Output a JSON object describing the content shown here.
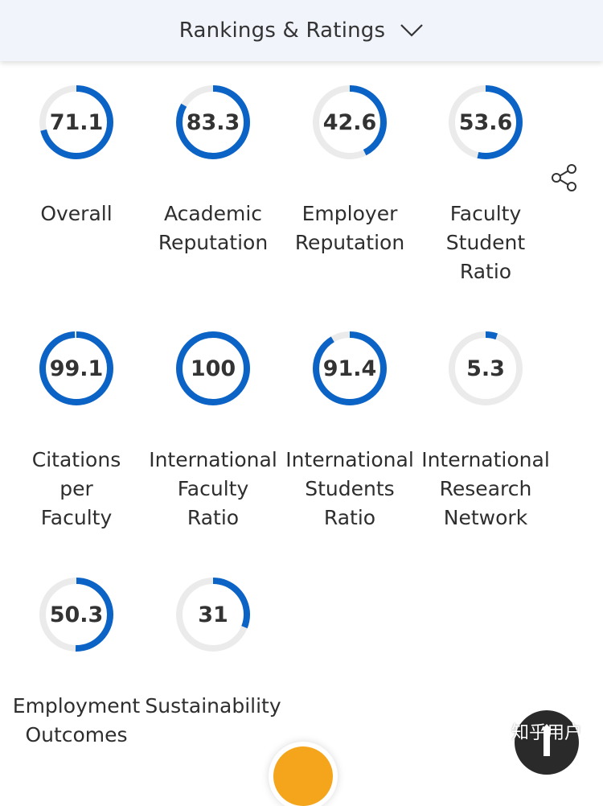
{
  "header": {
    "title": "Rankings & Ratings"
  },
  "metrics": [
    {
      "value_label": "71.1",
      "value": 71.1,
      "label": "Overall"
    },
    {
      "value_label": "83.3",
      "value": 83.3,
      "label": "Academic\nReputation"
    },
    {
      "value_label": "42.6",
      "value": 42.6,
      "label": "Employer\nReputation"
    },
    {
      "value_label": "53.6",
      "value": 53.6,
      "label": "Faculty\nStudent\nRatio"
    },
    {
      "value_label": "99.1",
      "value": 99.1,
      "label": "Citations\nper\nFaculty"
    },
    {
      "value_label": "100",
      "value": 100,
      "label": "International\nFaculty\nRatio"
    },
    {
      "value_label": "91.4",
      "value": 91.4,
      "label": "International\nStudents\nRatio"
    },
    {
      "value_label": "5.3",
      "value": 5.3,
      "label": "International\nResearch\nNetwork"
    },
    {
      "value_label": "50.3",
      "value": 50.3,
      "label": "Employment\nOutcomes"
    },
    {
      "value_label": "31",
      "value": 31,
      "label": "Sustainability"
    }
  ],
  "share": {
    "icon": "share-icon"
  },
  "watermark": {
    "text": "知乎用户"
  },
  "colors": {
    "accent": "#0c63c6",
    "track": "#ebebeb",
    "header_bg": "#f1f4fb"
  }
}
